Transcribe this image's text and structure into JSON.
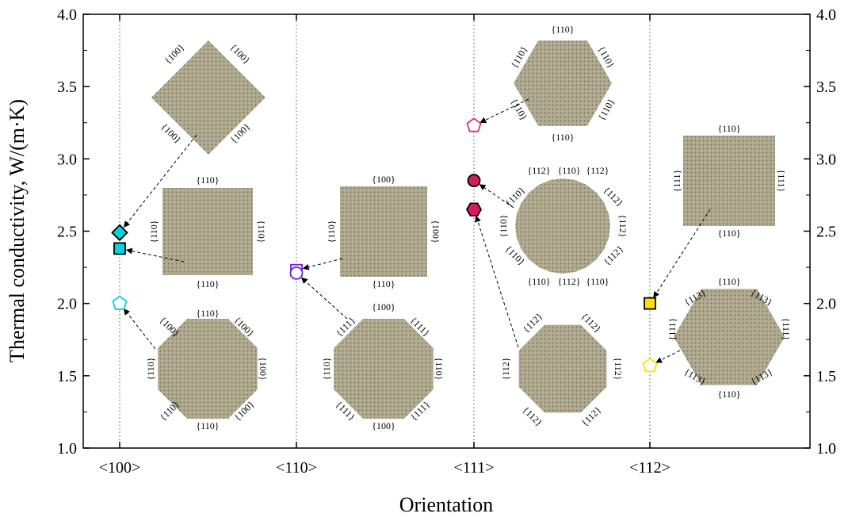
{
  "chart_data": {
    "type": "scatter",
    "xlabel": "Orientation",
    "ylabel": "Thermal conductivity, W/(m·K)",
    "categories": [
      "<100>",
      "<110>",
      "<111>",
      "<112>"
    ],
    "ylim": [
      1.0,
      4.0
    ],
    "yticks": [
      "1.0",
      "1.5",
      "2.0",
      "2.5",
      "3.0",
      "3.5",
      "4.0"
    ],
    "grid": "vertical dotted lines at each orientation",
    "points": [
      {
        "category": "<100>",
        "y": 2.49,
        "marker": "diamond",
        "fill": "#00d5e0",
        "stroke": "#000000"
      },
      {
        "category": "<100>",
        "y": 2.38,
        "marker": "square",
        "fill": "#00d5e0",
        "stroke": "#000000"
      },
      {
        "category": "<100>",
        "y": 2.0,
        "marker": "pentagon",
        "fill": "#ffffff",
        "stroke": "#00d5e0"
      },
      {
        "category": "<110>",
        "y": 2.23,
        "marker": "square",
        "fill": "#ffffff",
        "stroke": "#7a1fd0"
      },
      {
        "category": "<110>",
        "y": 2.21,
        "marker": "circle",
        "fill": "#ffffff",
        "stroke": "#7a1fd0"
      },
      {
        "category": "<111>",
        "y": 3.23,
        "marker": "pentagon",
        "fill": "#ffffff",
        "stroke": "#e0307a"
      },
      {
        "category": "<111>",
        "y": 2.85,
        "marker": "circle",
        "fill": "#d81b60",
        "stroke": "#000000"
      },
      {
        "category": "<111>",
        "y": 2.65,
        "marker": "hexagon",
        "fill": "#d81b60",
        "stroke": "#000000"
      },
      {
        "category": "<112>",
        "y": 2.0,
        "marker": "square",
        "fill": "#ffe000",
        "stroke": "#000000"
      },
      {
        "category": "<112>",
        "y": 1.57,
        "marker": "pentagon",
        "fill": "#ffffff",
        "stroke": "#ffe000"
      }
    ],
    "insets": [
      {
        "shape": "diamond",
        "labels": [
          "{100}",
          "{100}",
          "{100}",
          "{100}"
        ]
      },
      {
        "shape": "square",
        "labels": [
          "{110}",
          "{110}",
          "{110}",
          "{110}"
        ]
      },
      {
        "shape": "octagon",
        "labels": [
          "{110}",
          "{100}",
          "{100}",
          "{110}",
          "{100}",
          "{110}",
          "{100}",
          "{110}"
        ]
      },
      {
        "shape": "square",
        "labels": [
          "{100}",
          "{110}",
          "{100}",
          "{110}"
        ]
      },
      {
        "shape": "octagon",
        "labels": [
          "{100}",
          "{111}",
          "{111}",
          "{110}",
          "{110}",
          "{111}",
          "{111}",
          "{100}"
        ]
      },
      {
        "shape": "hexagon",
        "labels": [
          "{110}",
          "{110}",
          "{110}",
          "{110}",
          "{110}",
          "{110}"
        ]
      },
      {
        "shape": "round",
        "labels": [
          "{112}",
          "{110}",
          "{112}",
          "{110}",
          "{112}",
          "{110}",
          "{112}",
          "{110}",
          "{112}",
          "{110}",
          "{112}",
          "{110}"
        ]
      },
      {
        "shape": "octagon",
        "labels": [
          "{112}",
          "{112}",
          "{112}",
          "{112}",
          "{112}",
          "{112}"
        ]
      },
      {
        "shape": "square",
        "labels": [
          "{110}",
          "{111}",
          "{111}",
          "{110}"
        ]
      },
      {
        "shape": "hexagon",
        "labels": [
          "{110}",
          "{113}",
          "{113}",
          "{111}",
          "{111}",
          "{113}",
          "{113}",
          "{110}"
        ]
      }
    ],
    "colors": {
      "inset_fill": "#a9a386",
      "inset_dot": "#6f6a4f"
    }
  }
}
